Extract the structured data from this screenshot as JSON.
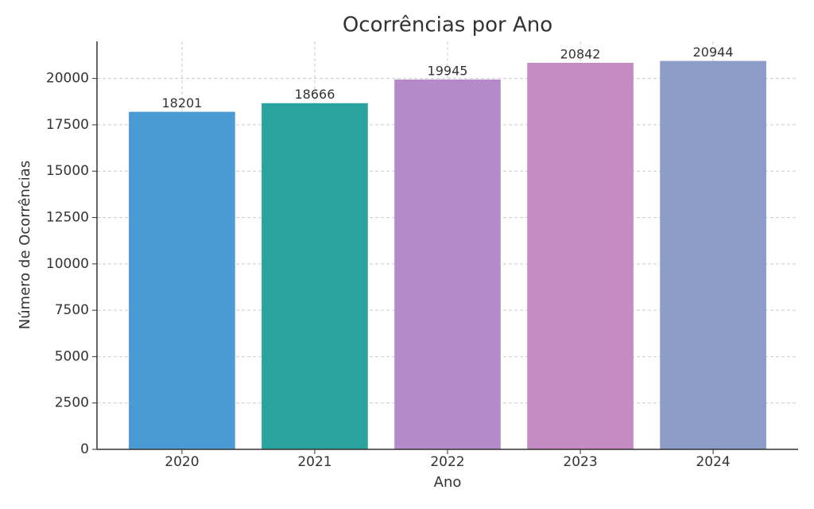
{
  "chart_data": {
    "type": "bar",
    "title": "Ocorrências por Ano",
    "x_label": "Ano",
    "y_label": "Número de Ocorrências",
    "categories": [
      "2020",
      "2021",
      "2022",
      "2023",
      "2024"
    ],
    "values": [
      18201,
      18666,
      19945,
      20842,
      20944
    ],
    "colors": [
      "#4a9ad4",
      "#2aa39e",
      "#b48bc8",
      "#c78bc4",
      "#8c9bc8"
    ],
    "ylim": [
      0,
      22000
    ],
    "yticks": [
      0,
      2500,
      5000,
      7500,
      10000,
      12500,
      15000,
      17500,
      20000
    ],
    "grid": true
  }
}
